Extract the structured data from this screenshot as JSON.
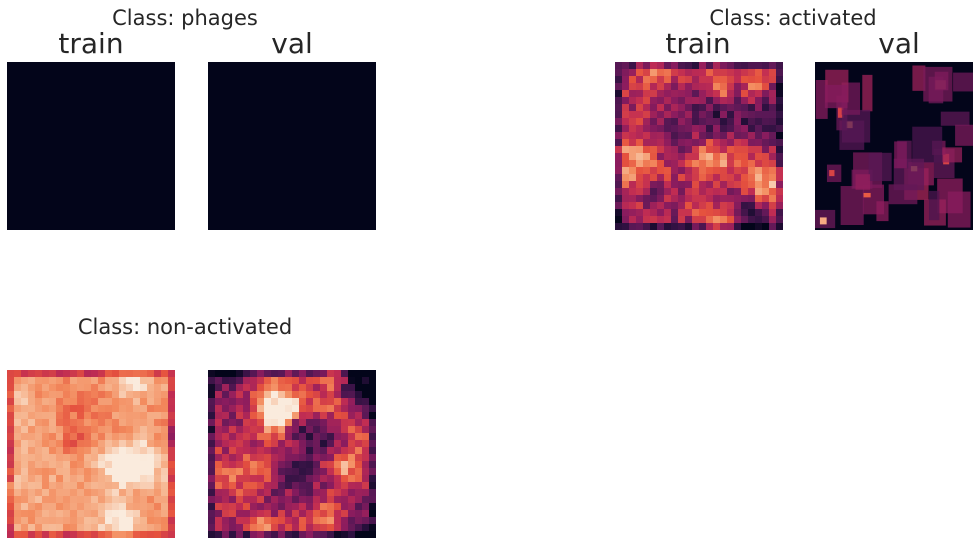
{
  "figure": {
    "panels": [
      {
        "class_title": "Class: phages",
        "splits": [
          {
            "label": "train",
            "style": "empty"
          },
          {
            "label": "val",
            "style": "empty"
          }
        ]
      },
      {
        "class_title": "Class: activated",
        "splits": [
          {
            "label": "train",
            "style": "dense-mid"
          },
          {
            "label": "val",
            "style": "sparse-boxes"
          }
        ]
      },
      {
        "class_title": "Class: non-activated",
        "splits": [
          {
            "label": "",
            "style": "dense-high"
          },
          {
            "label": "",
            "style": "dense-mid-dark"
          }
        ]
      }
    ]
  },
  "colormap": {
    "name": "rocket",
    "stops": [
      "#03051a",
      "#2d1140",
      "#5a1856",
      "#8b1c5e",
      "#c02c53",
      "#e5513e",
      "#f38a5d",
      "#f6b58f",
      "#faebdd"
    ]
  },
  "chart_data": {
    "type": "heatmap",
    "title": "",
    "panels": [
      {
        "class": "Class: phages",
        "train_intensity": 0.0,
        "val_intensity": 0.0
      },
      {
        "class": "Class: activated",
        "train_intensity": 0.45,
        "val_intensity": 0.15
      },
      {
        "class": "Class: non-activated",
        "train_intensity": 0.82,
        "val_intensity": 0.45
      }
    ],
    "colorbar": false,
    "grid": false
  }
}
